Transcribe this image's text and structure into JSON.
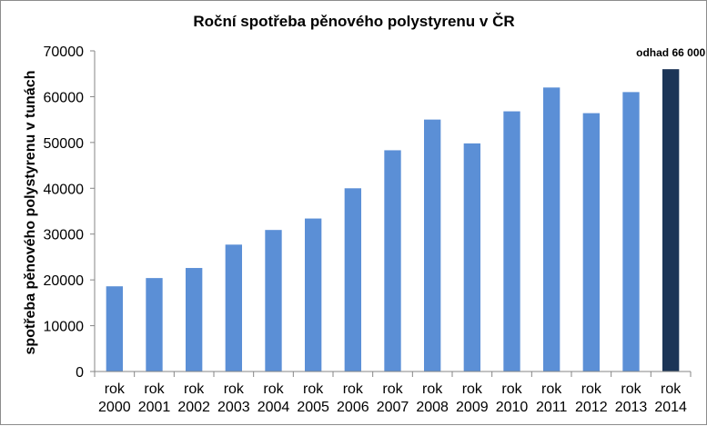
{
  "chart_data": {
    "type": "bar",
    "title": "Roční spotřeba pěnového polystyrenu v ČR",
    "xlabel": "",
    "ylabel": "spotřeba pěnového polystyrenu v tunách",
    "ylim": [
      0,
      70000
    ],
    "yticks": [
      "0",
      "10000",
      "20000",
      "30000",
      "40000",
      "50000",
      "60000",
      "70000"
    ],
    "categories": [
      [
        "rok",
        "2000"
      ],
      [
        "rok",
        "2001"
      ],
      [
        "rok",
        "2002"
      ],
      [
        "rok",
        "2003"
      ],
      [
        "rok",
        "2004"
      ],
      [
        "rok",
        "2005"
      ],
      [
        "rok",
        "2006"
      ],
      [
        "rok",
        "2007"
      ],
      [
        "rok",
        "2008"
      ],
      [
        "rok",
        "2009"
      ],
      [
        "rok",
        "2010"
      ],
      [
        "rok",
        "2011"
      ],
      [
        "rok",
        "2012"
      ],
      [
        "rok",
        "2013"
      ],
      [
        "rok",
        "2014"
      ]
    ],
    "values": [
      18600,
      20400,
      22600,
      27700,
      30900,
      33400,
      40000,
      48300,
      55000,
      49800,
      56800,
      62000,
      56400,
      61000,
      66000
    ],
    "highlight_index": 14,
    "annotation": "odhad 66 000",
    "grid": false,
    "colors": {
      "bar": "#5b8fd6",
      "highlight": "#1c3557",
      "axis": "#868686"
    }
  }
}
